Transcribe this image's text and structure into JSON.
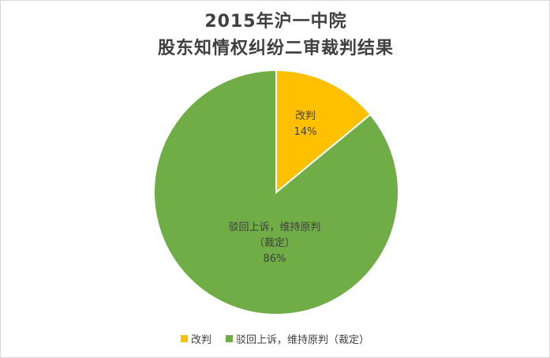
{
  "chart_data": {
    "type": "pie",
    "title_lines": [
      "2015年沪一中院",
      "股东知情权纠纷二审裁判结果"
    ],
    "slices": [
      {
        "label": "改判",
        "value": 14,
        "value_label": "14%",
        "color": "#ffc000"
      },
      {
        "label": "驳回上诉，维持原判（裁定）",
        "value": 86,
        "value_label": "86%",
        "color": "#70ad47"
      }
    ],
    "data_labels": [
      {
        "lines": [
          "改判",
          "14%"
        ]
      },
      {
        "lines": [
          "驳回上诉，维持原判",
          "（裁定）",
          "86%"
        ]
      }
    ],
    "legend_placement": "bottom"
  }
}
